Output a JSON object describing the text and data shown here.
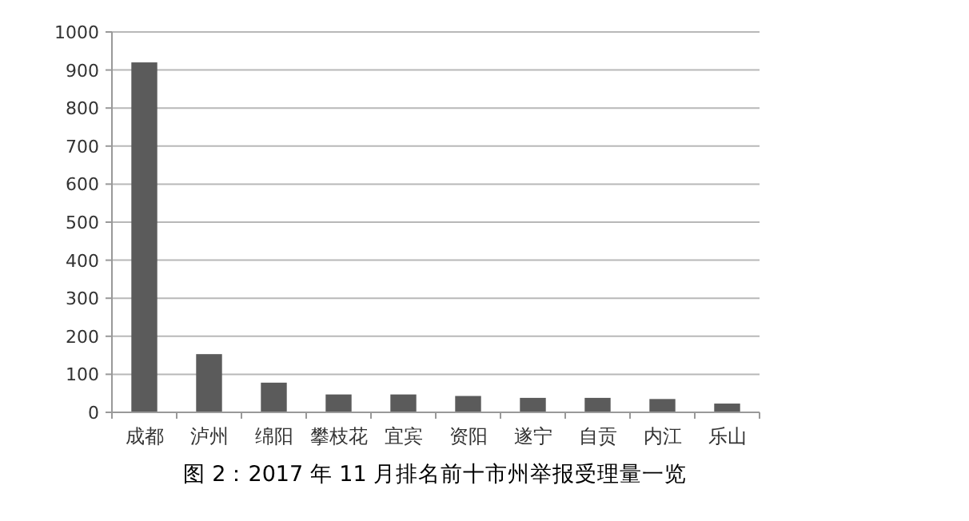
{
  "chart_data": {
    "type": "bar",
    "title": "图 2：2017 年 11 月排名前十市州举报受理量一览",
    "categories": [
      "成都",
      "泸州",
      "绵阳",
      "攀枝花",
      "宜宾",
      "资阳",
      "遂宁",
      "自贡",
      "内江",
      "乐山"
    ],
    "values": [
      920,
      153,
      78,
      47,
      47,
      43,
      38,
      38,
      35,
      23
    ],
    "color": "#5b5b5b",
    "ylim": [
      0,
      1000
    ],
    "yticks": [
      0,
      100,
      200,
      300,
      400,
      500,
      600,
      700,
      800,
      900,
      1000
    ],
    "grid": "y"
  }
}
